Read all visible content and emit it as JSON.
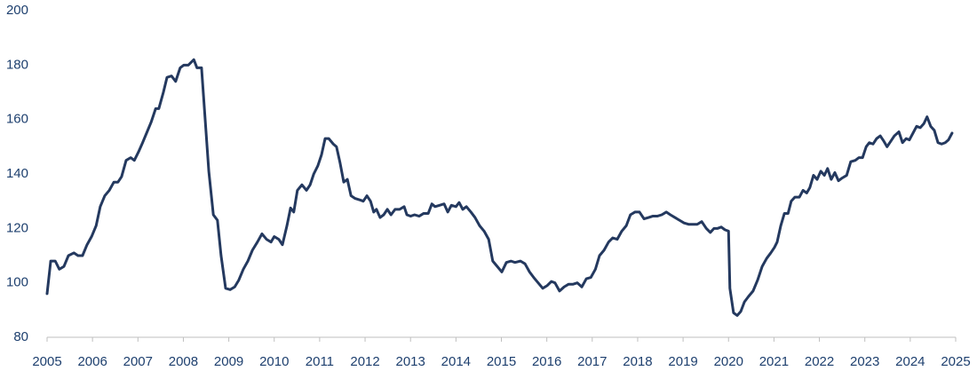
{
  "chart_data": {
    "type": "line",
    "x": [
      2005.0,
      2005.08,
      2005.18,
      2005.27,
      2005.37,
      2005.47,
      2005.59,
      2005.68,
      2005.78,
      2005.88,
      2005.98,
      2006.08,
      2006.17,
      2006.27,
      2006.37,
      2006.47,
      2006.56,
      2006.64,
      2006.74,
      2006.84,
      2006.92,
      2007.01,
      2007.09,
      2007.19,
      2007.29,
      2007.39,
      2007.46,
      2007.56,
      2007.64,
      2007.74,
      2007.83,
      2007.93,
      2008.01,
      2008.11,
      2008.23,
      2008.3,
      2008.4,
      2008.48,
      2008.56,
      2008.66,
      2008.75,
      2008.83,
      2008.93,
      2009.03,
      2009.13,
      2009.22,
      2009.32,
      2009.42,
      2009.52,
      2009.63,
      2009.73,
      2009.83,
      2009.93,
      2010.0,
      2010.1,
      2010.18,
      2010.28,
      2010.36,
      2010.43,
      2010.51,
      2010.61,
      2010.71,
      2010.79,
      2010.87,
      2010.96,
      2011.04,
      2011.12,
      2011.2,
      2011.3,
      2011.37,
      2011.45,
      2011.53,
      2011.61,
      2011.69,
      2011.78,
      2011.88,
      2011.96,
      2012.04,
      2012.12,
      2012.19,
      2012.25,
      2012.33,
      2012.41,
      2012.49,
      2012.57,
      2012.66,
      2012.76,
      2012.86,
      2012.92,
      2013.0,
      2013.09,
      2013.19,
      2013.29,
      2013.39,
      2013.47,
      2013.54,
      2013.64,
      2013.74,
      2013.82,
      2013.9,
      2014.0,
      2014.07,
      2014.15,
      2014.23,
      2014.33,
      2014.42,
      2014.52,
      2014.62,
      2014.72,
      2014.81,
      2014.91,
      2015.01,
      2015.11,
      2015.21,
      2015.3,
      2015.42,
      2015.52,
      2015.62,
      2015.71,
      2015.81,
      2015.91,
      2016.01,
      2016.1,
      2016.18,
      2016.28,
      2016.38,
      2016.48,
      2016.58,
      2016.67,
      2016.77,
      2016.87,
      2016.97,
      2017.07,
      2017.16,
      2017.26,
      2017.36,
      2017.45,
      2017.55,
      2017.65,
      2017.75,
      2017.84,
      2017.94,
      2018.04,
      2018.14,
      2018.24,
      2018.33,
      2018.43,
      2018.53,
      2018.63,
      2018.72,
      2018.82,
      2018.92,
      2019.02,
      2019.12,
      2019.21,
      2019.31,
      2019.41,
      2019.51,
      2019.6,
      2019.68,
      2019.76,
      2019.84,
      2019.92,
      2020.0,
      2020.03,
      2020.11,
      2020.19,
      2020.27,
      2020.35,
      2020.44,
      2020.54,
      2020.64,
      2020.74,
      2020.84,
      2020.93,
      2021.01,
      2021.07,
      2021.15,
      2021.23,
      2021.31,
      2021.38,
      2021.46,
      2021.56,
      2021.64,
      2021.72,
      2021.79,
      2021.87,
      2021.95,
      2022.03,
      2022.11,
      2022.18,
      2022.26,
      2022.34,
      2022.42,
      2022.5,
      2022.6,
      2022.69,
      2022.79,
      2022.87,
      2022.95,
      2023.03,
      2023.1,
      2023.18,
      2023.26,
      2023.34,
      2023.42,
      2023.49,
      2023.57,
      2023.65,
      2023.75,
      2023.83,
      2023.91,
      2023.98,
      2024.06,
      2024.14,
      2024.22,
      2024.3,
      2024.37,
      2024.45,
      2024.53,
      2024.61,
      2024.69,
      2024.77,
      2024.84,
      2024.92
    ],
    "series": [
      {
        "color": "#24395f",
        "values": [
          96,
          108,
          108,
          105,
          106,
          110,
          111,
          110,
          110,
          114,
          117,
          121,
          128,
          132,
          134,
          137,
          137,
          139,
          145,
          146,
          145,
          148,
          151,
          155,
          159,
          164,
          164,
          170,
          175.5,
          176,
          174,
          179,
          180,
          180,
          182,
          179,
          179,
          160,
          141,
          125,
          123,
          110,
          98,
          97.5,
          98.5,
          101,
          105,
          108,
          112,
          115,
          118,
          116,
          115,
          117,
          116,
          114,
          121,
          127.5,
          126,
          134,
          136,
          134,
          136,
          140,
          143,
          147,
          153,
          153,
          151,
          150,
          144,
          137,
          138,
          132,
          131,
          130.5,
          130,
          132,
          130,
          126,
          127,
          124,
          125,
          127,
          125,
          127,
          127,
          128,
          125,
          124.5,
          125,
          124.5,
          125.5,
          125.5,
          129,
          128,
          128.5,
          129,
          126,
          128.5,
          128,
          129.5,
          127,
          128,
          126,
          124,
          121,
          119,
          116,
          108,
          106,
          104,
          107.5,
          108,
          107.5,
          108,
          107,
          104,
          102,
          100,
          98,
          99,
          100.5,
          100,
          97,
          98.5,
          99.5,
          99.5,
          100,
          98.5,
          101.5,
          102,
          105,
          110,
          112,
          115,
          116.5,
          116,
          119,
          121,
          125,
          126,
          126,
          123.5,
          124,
          124.5,
          124.5,
          125,
          126,
          125,
          124,
          123,
          122,
          121.5,
          121.5,
          121.5,
          122.5,
          120,
          118.5,
          120,
          120,
          120.5,
          119.5,
          119,
          98,
          89,
          88,
          89.5,
          93,
          95,
          97,
          101,
          106,
          109,
          111,
          113,
          115,
          121,
          125.5,
          125.5,
          130,
          131.5,
          131.5,
          134,
          133,
          135,
          139.5,
          138,
          141,
          139.5,
          142,
          138,
          140.5,
          137.5,
          138.5,
          139.5,
          144.5,
          145,
          146,
          146,
          150,
          151.5,
          151,
          153,
          154,
          152,
          150,
          152,
          154,
          155.5,
          151.5,
          153,
          152.5,
          155,
          157.5,
          157,
          158.5,
          161,
          157.5,
          156,
          151.5,
          151,
          151.5,
          152.5,
          155
        ]
      }
    ],
    "xlim": [
      2005,
      2025
    ],
    "xticks": [
      2005,
      2006,
      2007,
      2008,
      2009,
      2010,
      2011,
      2012,
      2013,
      2014,
      2015,
      2016,
      2017,
      2018,
      2019,
      2020,
      2021,
      2022,
      2023,
      2024,
      2025
    ],
    "ylim": [
      80,
      200
    ],
    "yticks": [
      80,
      100,
      120,
      140,
      160,
      180,
      200
    ],
    "grid": false
  }
}
